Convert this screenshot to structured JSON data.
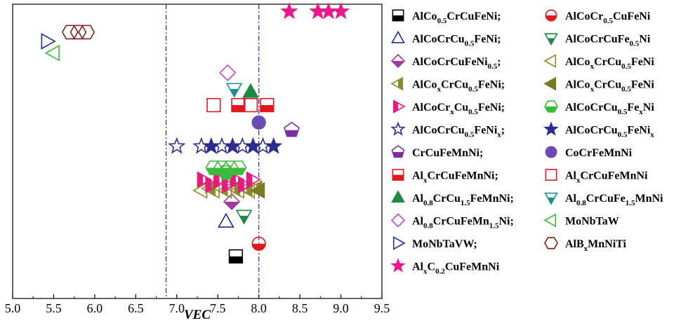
{
  "chart_data": {
    "type": "scatter",
    "xlabel": "VEC",
    "xlim": [
      5.0,
      9.5
    ],
    "xticks": [
      "5.0",
      "5.5",
      "6.0",
      "6.5",
      "7.0",
      "7.5",
      "8.0",
      "8.5",
      "9.0",
      "9.5"
    ],
    "reference_lines_x": [
      6.87,
      8.0
    ],
    "ylabel": "",
    "series": [
      {
        "name": "AlCo0.5CrCuFeNi;",
        "marker": "square-half-bottom",
        "color": "#000000",
        "points": [
          {
            "x": 7.72,
            "y": 0.143
          }
        ]
      },
      {
        "name": "AlCoCr0.5CuFeNi",
        "marker": "circle-half-bottom",
        "color": "#e0191f",
        "points": [
          {
            "x": 8.0,
            "y": 0.186
          }
        ]
      },
      {
        "name": "AlCoCrCu0.5FeNi;",
        "marker": "triangle-up-open",
        "color": "#1e2d8f",
        "points": [
          {
            "x": 7.6,
            "y": 0.261
          }
        ]
      },
      {
        "name": "AlCoCrCuFe0.5Ni",
        "marker": "triangle-down-half",
        "color": "#1f8a45",
        "points": [
          {
            "x": 7.82,
            "y": 0.281
          }
        ]
      },
      {
        "name": "AlCoCrCuFeNi0.5;",
        "marker": "diamond-half-bottom",
        "color": "#a23a9d",
        "points": [
          {
            "x": 7.67,
            "y": 0.329
          }
        ]
      },
      {
        "name": "AlCox CrCu0.5FeNi",
        "marker": "triangle-left-open",
        "color": "#8c8c2a",
        "points": [
          {
            "x": 7.3,
            "y": 0.367
          },
          {
            "x": 7.45,
            "y": 0.367
          },
          {
            "x": 7.6,
            "y": 0.367
          },
          {
            "x": 7.75,
            "y": 0.367
          },
          {
            "x": 7.88,
            "y": 0.367
          }
        ]
      },
      {
        "name": "AlCox CrCu0.5FeNi;",
        "marker": "triangle-left-half",
        "color": "#8c8c2a",
        "points": [
          {
            "x": 7.4,
            "y": 0.374
          },
          {
            "x": 7.55,
            "y": 0.374
          },
          {
            "x": 7.7,
            "y": 0.374
          },
          {
            "x": 7.85,
            "y": 0.374
          },
          {
            "x": 7.97,
            "y": 0.374
          }
        ]
      },
      {
        "name": "AlCox CrCu0.5FeNi",
        "marker": "triangle-left-solid",
        "color": "#7a7a24",
        "points": [
          {
            "x": 8.0,
            "y": 0.367
          }
        ]
      },
      {
        "name": "AlCoCrx Cu0.5FeNi;",
        "marker": "triangle-right-half",
        "color": "#e8197f",
        "points": [
          {
            "x": 7.32,
            "y": 0.404
          },
          {
            "x": 7.52,
            "y": 0.404
          },
          {
            "x": 7.72,
            "y": 0.404
          },
          {
            "x": 7.92,
            "y": 0.404
          },
          {
            "x": 7.42,
            "y": 0.385
          },
          {
            "x": 7.62,
            "y": 0.385
          },
          {
            "x": 7.82,
            "y": 0.385
          }
        ]
      },
      {
        "name": "AlCoCrCu0.5Fex Ni",
        "marker": "hexagon-half-bottom",
        "color": "#3cba3c",
        "points": [
          {
            "x": 7.45,
            "y": 0.444
          },
          {
            "x": 7.55,
            "y": 0.444
          },
          {
            "x": 7.65,
            "y": 0.444
          },
          {
            "x": 7.75,
            "y": 0.444
          },
          {
            "x": 7.6,
            "y": 0.428
          }
        ]
      },
      {
        "name": "AlCoCrCu0.5FeNix",
        "marker": "star-open",
        "color": "#2b2c8c",
        "points": [
          {
            "x": 7.0,
            "y": 0.517
          },
          {
            "x": 7.3,
            "y": 0.517
          },
          {
            "x": 7.55,
            "y": 0.517
          },
          {
            "x": 7.8,
            "y": 0.517
          },
          {
            "x": 8.05,
            "y": 0.517
          }
        ]
      },
      {
        "name": "AlCoCrCu0.5FeNix",
        "marker": "star-solid",
        "color": "#2b2c8c",
        "points": [
          {
            "x": 7.42,
            "y": 0.517
          },
          {
            "x": 7.68,
            "y": 0.517
          },
          {
            "x": 7.93,
            "y": 0.517
          },
          {
            "x": 8.18,
            "y": 0.517
          }
        ]
      },
      {
        "name": "CrCuFeMnNi;",
        "marker": "pentagon-half-bottom",
        "color": "#7b2f9b",
        "points": [
          {
            "x": 8.4,
            "y": 0.572
          }
        ]
      },
      {
        "name": "CoCrFeMnNi",
        "marker": "circle-solid",
        "color": "#6b4ab3",
        "points": [
          {
            "x": 8.0,
            "y": 0.598
          }
        ]
      },
      {
        "name": "Alx CrCuFeMnNi;",
        "marker": "square-half-bottom",
        "color": "#e0191f",
        "points": [
          {
            "x": 7.75,
            "y": 0.657
          },
          {
            "x": 8.1,
            "y": 0.657
          }
        ]
      },
      {
        "name": "Alx CrCuFeMnNi",
        "marker": "square-open",
        "color": "#e0191f",
        "points": [
          {
            "x": 7.45,
            "y": 0.657
          },
          {
            "x": 7.9,
            "y": 0.657
          }
        ]
      },
      {
        "name": "Al0.8CrCu1.5FeMnNi;",
        "marker": "triangle-up-solid",
        "color": "#1f8a45",
        "points": [
          {
            "x": 7.9,
            "y": 0.702
          }
        ]
      },
      {
        "name": "Al0.8CrCuFe1.5MnNi",
        "marker": "triangle-down-half",
        "color": "#1c8f8f",
        "points": [
          {
            "x": 7.7,
            "y": 0.712
          }
        ]
      },
      {
        "name": "Al0.8CrCuFeMn1.5Ni;",
        "marker": "diamond-open",
        "color": "#c04cbd",
        "points": [
          {
            "x": 7.62,
            "y": 0.767
          }
        ]
      },
      {
        "name": "MoNbTaW",
        "marker": "triangle-left-open",
        "color": "#3cba3c",
        "points": [
          {
            "x": 5.5,
            "y": 0.834
          }
        ]
      },
      {
        "name": "MoNbTaVW;",
        "marker": "triangle-right-open",
        "color": "#1e2d8f",
        "points": [
          {
            "x": 5.42,
            "y": 0.874
          }
        ]
      },
      {
        "name": "AlBx MnNiTi",
        "marker": "hexagon-open",
        "color": "#7a1f1f",
        "points": [
          {
            "x": 5.7,
            "y": 0.905
          },
          {
            "x": 5.8,
            "y": 0.905
          },
          {
            "x": 5.9,
            "y": 0.905
          }
        ]
      },
      {
        "name": "Alx C0.2CuFeMnNi",
        "marker": "star-solid",
        "color": "#e8198a",
        "points": [
          {
            "x": 8.37,
            "y": 0.975
          },
          {
            "x": 8.72,
            "y": 0.975
          },
          {
            "x": 8.85,
            "y": 0.975
          },
          {
            "x": 9.0,
            "y": 0.975
          }
        ]
      }
    ]
  },
  "legend": [
    {
      "marker": "square-half-bottom",
      "color": "#000000",
      "label": "AlCo₀.₅CrCuFeNi;",
      "parts": [
        [
          "AlCo",
          ""
        ],
        [
          "0.5",
          "sub"
        ],
        [
          "CrCuFeNi;",
          ""
        ]
      ]
    },
    {
      "marker": "circle-half-bottom",
      "color": "#e0191f",
      "label": "AlCoCr0.5CuFeNi",
      "parts": [
        [
          "AlCoCr",
          ""
        ],
        [
          "0.5",
          "sub"
        ],
        [
          "CuFeNi",
          ""
        ]
      ]
    },
    {
      "marker": "triangle-up-open",
      "color": "#1e2d8f",
      "label": "AlCoCrCu0.5FeNi;",
      "parts": [
        [
          "AlCoCrCu",
          ""
        ],
        [
          "0.5",
          "sub"
        ],
        [
          "FeNi;",
          ""
        ]
      ]
    },
    {
      "marker": "triangle-down-half",
      "color": "#1f8a45",
      "label": "AlCoCrCuFe0.5Ni",
      "parts": [
        [
          "AlCoCrCuFe",
          ""
        ],
        [
          "0.5",
          "sub"
        ],
        [
          "Ni",
          ""
        ]
      ]
    },
    {
      "marker": "diamond-half-bottom",
      "color": "#a23a9d",
      "label": "AlCoCrCuFeNi0.5;",
      "parts": [
        [
          "AlCoCrCuFeNi",
          ""
        ],
        [
          "0.5",
          "sub"
        ],
        [
          ";",
          ""
        ]
      ]
    },
    {
      "marker": "triangle-left-open",
      "color": "#8c8c2a",
      "label": "AlCoxCrCu0.5FeNi",
      "parts": [
        [
          "AlCo",
          ""
        ],
        [
          "x",
          "sub"
        ],
        [
          "CrCu",
          ""
        ],
        [
          "0.5",
          "sub"
        ],
        [
          "FeNi",
          ""
        ]
      ]
    },
    {
      "marker": "triangle-left-half",
      "color": "#8c8c2a",
      "label": "AlCoxCrCu0.5FeNi;",
      "parts": [
        [
          "AlCo",
          ""
        ],
        [
          "x",
          "sub"
        ],
        [
          "CrCu",
          ""
        ],
        [
          "0.5",
          "sub"
        ],
        [
          "FeNi;",
          ""
        ]
      ]
    },
    {
      "marker": "triangle-left-solid",
      "color": "#7a7a24",
      "label": "AlCoxCrCu0.5FeNi",
      "parts": [
        [
          "AlCo",
          ""
        ],
        [
          "x",
          "sub"
        ],
        [
          "CrCu",
          ""
        ],
        [
          "0.5",
          "sub"
        ],
        [
          "FeNi",
          ""
        ]
      ]
    },
    {
      "marker": "triangle-right-half",
      "color": "#e8197f",
      "label": "AlCoCrxCu0.5FeNi;",
      "parts": [
        [
          "AlCoCr",
          ""
        ],
        [
          "x",
          "sub"
        ],
        [
          "Cu",
          ""
        ],
        [
          "0.5",
          "sub"
        ],
        [
          "FeNi;",
          ""
        ]
      ]
    },
    {
      "marker": "hexagon-half-bottom",
      "color": "#3cba3c",
      "label": "AlCoCrCu0.5FexNi",
      "parts": [
        [
          "AlCoCrCu",
          ""
        ],
        [
          "0.5",
          "sub"
        ],
        [
          "Fe",
          ""
        ],
        [
          "x",
          "sub"
        ],
        [
          "Ni",
          ""
        ]
      ]
    },
    {
      "marker": "star-open",
      "color": "#2b2c8c",
      "label": "AlCoCrCu0.5FeNix;",
      "parts": [
        [
          "AlCoCrCu",
          ""
        ],
        [
          "0.5",
          "sub"
        ],
        [
          "FeNi",
          ""
        ],
        [
          "x",
          "sub"
        ],
        [
          ";",
          ""
        ]
      ]
    },
    {
      "marker": "star-solid",
      "color": "#2b2c8c",
      "label": "AlCoCrCu0.5FeNix",
      "parts": [
        [
          "AlCoCrCu",
          ""
        ],
        [
          "0.5",
          "sub"
        ],
        [
          "FeNi",
          ""
        ],
        [
          "x",
          "sub"
        ]
      ]
    },
    {
      "marker": "pentagon-half-bottom",
      "color": "#7b2f9b",
      "label": "CrCuFeMnNi;",
      "parts": [
        [
          "CrCuFeMnNi;",
          ""
        ]
      ]
    },
    {
      "marker": "circle-solid",
      "color": "#6b4ab3",
      "label": "CoCrFeMnNi",
      "parts": [
        [
          "CoCrFeMnNi",
          ""
        ]
      ]
    },
    {
      "marker": "square-half-bottom",
      "color": "#e0191f",
      "label": "AlxCrCuFeMnNi;",
      "parts": [
        [
          "Al",
          ""
        ],
        [
          "x",
          "sub"
        ],
        [
          "CrCuFeMnNi;",
          ""
        ]
      ]
    },
    {
      "marker": "square-open",
      "color": "#e0191f",
      "label": "AlxCrCuFeMnNi",
      "parts": [
        [
          "Al",
          ""
        ],
        [
          "x",
          "sub"
        ],
        [
          "CrCuFeMnNi",
          ""
        ]
      ]
    },
    {
      "marker": "triangle-up-solid",
      "color": "#1f8a45",
      "label": "Al0.8CrCu1.5FeMnNi;",
      "parts": [
        [
          "Al",
          ""
        ],
        [
          "0.8",
          "sub"
        ],
        [
          "CrCu",
          ""
        ],
        [
          "1.5",
          "sub"
        ],
        [
          "FeMnNi;",
          ""
        ]
      ]
    },
    {
      "marker": "triangle-down-half",
      "color": "#1c8f8f",
      "label": "Al0.8CrCuFe1.5MnNi",
      "parts": [
        [
          "Al",
          ""
        ],
        [
          "0.8",
          "sub"
        ],
        [
          "CrCuFe",
          ""
        ],
        [
          "1.5",
          "sub"
        ],
        [
          "MnNi",
          ""
        ]
      ]
    },
    {
      "marker": "diamond-open",
      "color": "#c04cbd",
      "label": "Al0.8CrCuFeMn1.5Ni;",
      "parts": [
        [
          "Al",
          ""
        ],
        [
          "0.8",
          "sub"
        ],
        [
          "CrCuFeMn",
          ""
        ],
        [
          "1.5",
          "sub"
        ],
        [
          "Ni;",
          ""
        ]
      ]
    },
    {
      "marker": "triangle-left-open",
      "color": "#3cba3c",
      "label": "MoNbTaW",
      "parts": [
        [
          "MoNbTaW",
          ""
        ]
      ]
    },
    {
      "marker": "triangle-right-open",
      "color": "#1e2d8f",
      "label": "MoNbTaVW;",
      "parts": [
        [
          "MoNbTaVW;",
          ""
        ]
      ]
    },
    {
      "marker": "hexagon-open",
      "color": "#7a1f1f",
      "label": "AlBxMnNiTi",
      "parts": [
        [
          "AlB",
          ""
        ],
        [
          "x",
          "sub"
        ],
        [
          "MnNiTi",
          ""
        ]
      ]
    },
    {
      "marker": "star-solid",
      "color": "#e8198a",
      "label": "AlxC0.2CuFeMnNi",
      "parts": [
        [
          "Al",
          ""
        ],
        [
          "x",
          "sub"
        ],
        [
          "C",
          ""
        ],
        [
          "0.2",
          "sub"
        ],
        [
          "CuFeMnNi",
          ""
        ]
      ]
    }
  ]
}
